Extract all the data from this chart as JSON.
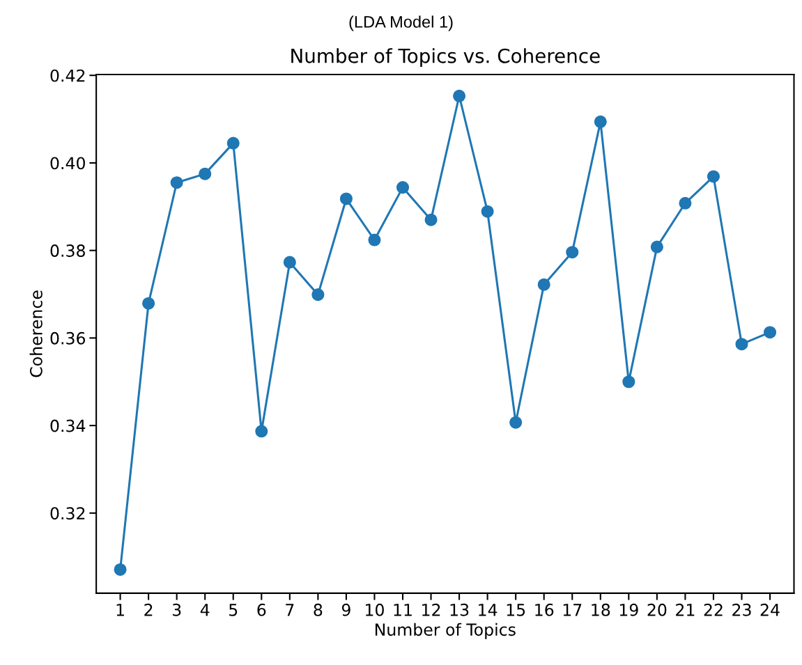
{
  "chart_data": {
    "type": "line",
    "title": "Number of Topics vs. Coherence",
    "subtitle": "(LDA Model 1)",
    "xlabel": "Number of Topics",
    "ylabel": "Coherence",
    "x": [
      1,
      2,
      3,
      4,
      5,
      6,
      7,
      8,
      9,
      10,
      11,
      12,
      13,
      14,
      15,
      16,
      17,
      18,
      19,
      20,
      21,
      22,
      23,
      24
    ],
    "series": [
      {
        "color": "#1f77b4",
        "values": [
          0.3071,
          0.3679,
          0.3955,
          0.3975,
          0.4045,
          0.3387,
          0.3773,
          0.3699,
          0.3918,
          0.3824,
          0.3944,
          0.387,
          0.4153,
          0.3889,
          0.3407,
          0.3722,
          0.3796,
          0.4094,
          0.35,
          0.3808,
          0.3908,
          0.3969,
          0.3586,
          0.3613
        ]
      }
    ],
    "xlim": [
      0.15,
      24.85
    ],
    "xticks": [
      1,
      2,
      3,
      4,
      5,
      6,
      7,
      8,
      9,
      10,
      11,
      12,
      13,
      14,
      15,
      16,
      17,
      18,
      19,
      20,
      21,
      22,
      23,
      24
    ],
    "ylim": [
      0.3017,
      0.4202
    ],
    "yticks": [
      {
        "value": 0.32,
        "label": "0.32"
      },
      {
        "value": 0.34,
        "label": "0.34"
      },
      {
        "value": 0.36,
        "label": "0.36"
      },
      {
        "value": 0.38,
        "label": "0.38"
      },
      {
        "value": 0.4,
        "label": "0.40"
      },
      {
        "value": 0.42,
        "label": "0.42"
      }
    ],
    "marker": "circle",
    "line_style": "solid",
    "grid": false,
    "legend": false
  }
}
